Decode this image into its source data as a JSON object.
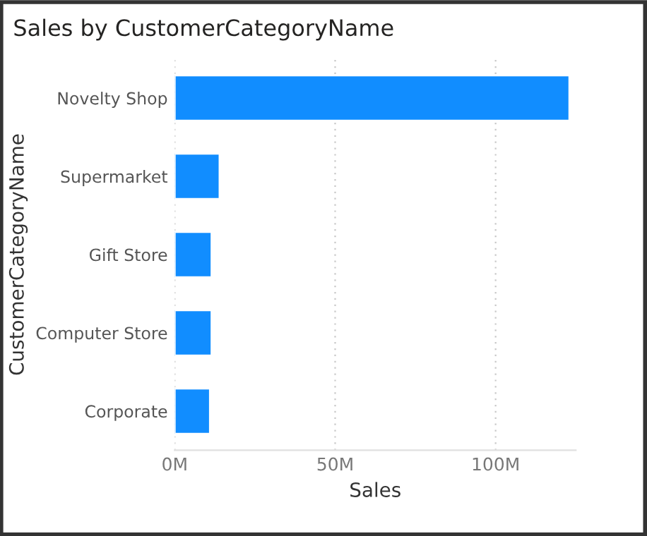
{
  "chart_data": {
    "type": "bar",
    "orientation": "horizontal",
    "title": "Sales by CustomerCategoryName",
    "xlabel": "Sales",
    "ylabel": "CustomerCategoryName",
    "categories": [
      "Novelty Shop",
      "Supermarket",
      "Gift Store",
      "Computer Store",
      "Corporate"
    ],
    "values": [
      123,
      14,
      11.5,
      11.5,
      11
    ],
    "color": "#118dff",
    "xlim": [
      0,
      125
    ],
    "xticks": [
      {
        "value": 0,
        "label": "0M"
      },
      {
        "value": 50,
        "label": "50M"
      },
      {
        "value": 100,
        "label": "100M"
      }
    ],
    "grid": "x"
  }
}
